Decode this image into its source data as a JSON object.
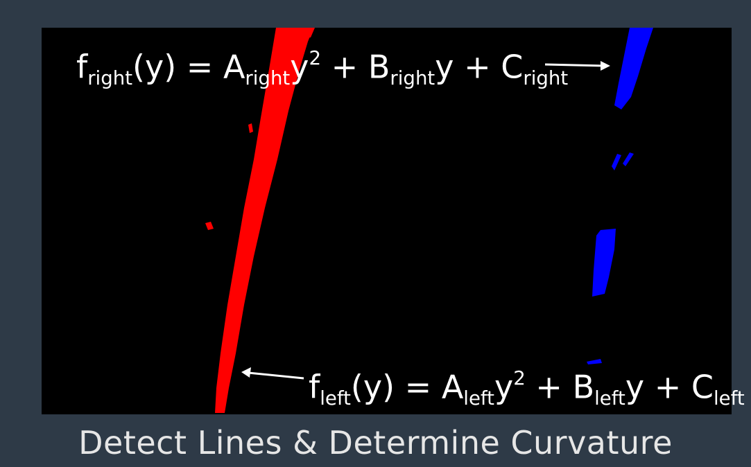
{
  "colors": {
    "background": "#2e3a47",
    "canvas": "#000000",
    "left_lane": "#ff0000",
    "right_lane": "#0000ff",
    "text": "#ffffff",
    "caption": "#e6e6e6"
  },
  "equation_right": {
    "f": "f",
    "f_sub": "right",
    "arg": "(y) = ",
    "a": "A",
    "a_sub": "right",
    "y1": "y",
    "exp": "2",
    "plus_b": " + B",
    "b_sub": "right",
    "y2": "y + C",
    "c_sub": "right"
  },
  "equation_left": {
    "f": "f",
    "f_sub": "left",
    "arg": "(y) = ",
    "a": "A",
    "a_sub": "left",
    "y1": "y",
    "exp": "2",
    "plus_b": " + B",
    "b_sub": "left",
    "y2": "y + C",
    "c_sub": "left"
  },
  "caption": "Detect Lines & Determine Curvature"
}
